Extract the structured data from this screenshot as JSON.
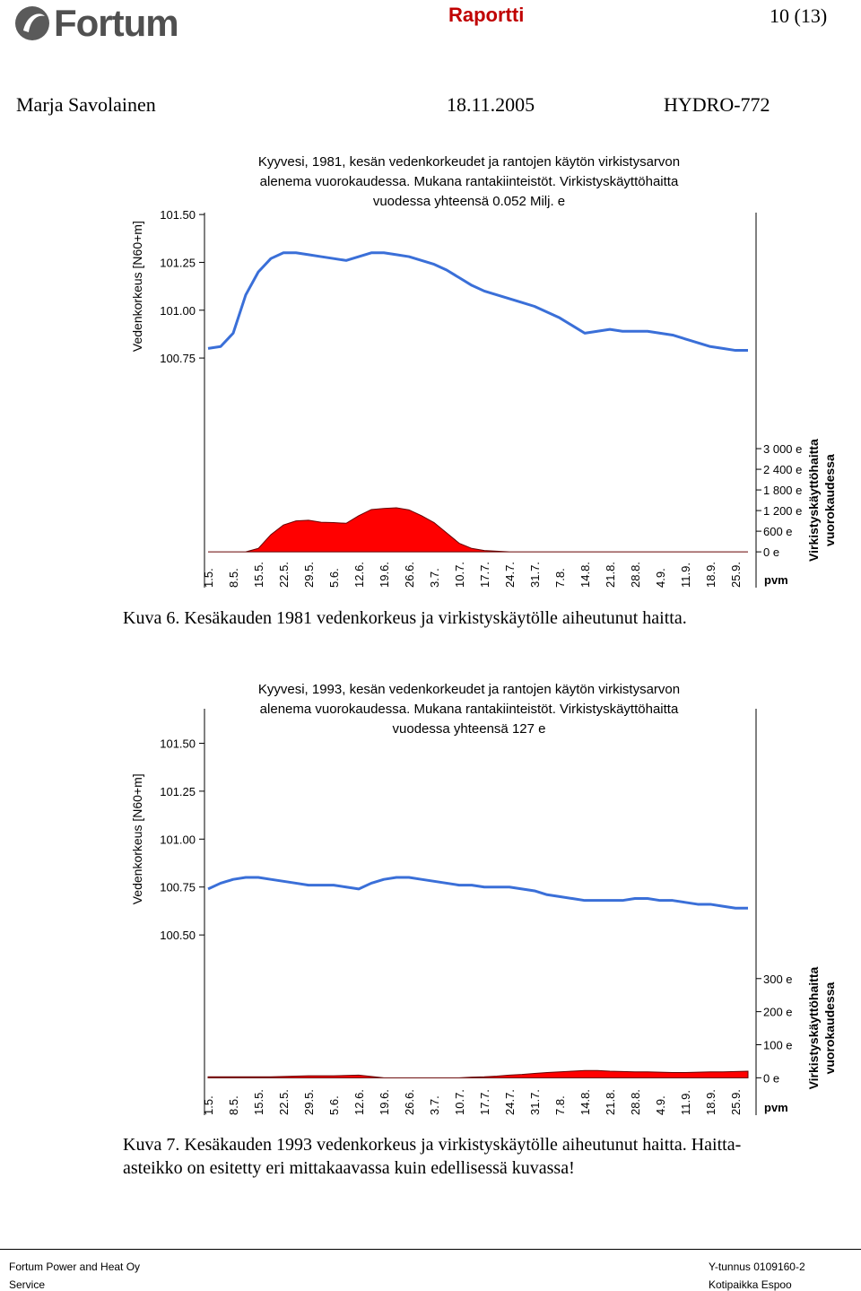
{
  "header": {
    "logo": "Fortum",
    "doc_type": "Raportti",
    "page": "10 (13)",
    "author": "Marja Savolainen",
    "date": "18.11.2005",
    "doc_id": "HYDRO-772"
  },
  "chart_data": [
    {
      "type": "line",
      "title": [
        "Kyyvesi, 1981, kesän vedenkorkeudet ja rantojen käytön virkistysarvon",
        "alenema vuorokaudessa. Mukana rantakiinteistöt. Virkistyskäyttöhaitta",
        "vuodessa yhteensä 0.052 Milj. e"
      ],
      "y_label": "Vedenkorkeus [N60+m]",
      "y2_label": [
        "Virkistyskäyttöhaitta",
        "vuorokaudessa"
      ],
      "x_label": "pvm",
      "categories": [
        "1.5.",
        null,
        "8.5.",
        null,
        "15.5.",
        null,
        "22.5.",
        null,
        "29.5.",
        null,
        "5.6.",
        null,
        "12.6.",
        null,
        "19.6.",
        null,
        "26.6.",
        null,
        "3.7.",
        null,
        "10.7.",
        null,
        "17.7.",
        null,
        "24.7.",
        null,
        "31.7.",
        null,
        "7.8.",
        null,
        "14.8.",
        null,
        "21.8.",
        null,
        "28.8.",
        null,
        "4.9.",
        null,
        "11.9.",
        null,
        "18.9.",
        null,
        "25.9.",
        null
      ],
      "ylim": [
        99.55,
        101.51
      ],
      "yticks": [
        {
          "value": 100.75,
          "label": "100.75"
        },
        {
          "value": 101.0,
          "label": "101.00"
        },
        {
          "value": 101.25,
          "label": "101.25"
        },
        {
          "value": 101.5,
          "label": "101.50"
        }
      ],
      "y2lim": [
        -1040,
        9860
      ],
      "y2ticks": [
        {
          "value": 0,
          "label": "0 e"
        },
        {
          "value": 600,
          "label": "600 e"
        },
        {
          "value": 1200,
          "label": "1 200 e"
        },
        {
          "value": 1800,
          "label": "1 800 e"
        },
        {
          "value": 2400,
          "label": "2 400 e"
        },
        {
          "value": 3000,
          "label": "3 000 e"
        }
      ],
      "series": [
        {
          "type": "line",
          "color": "#3a6fd8",
          "values": [
            100.8,
            100.81,
            100.88,
            101.08,
            101.2,
            101.27,
            101.3,
            101.3,
            101.29,
            101.28,
            101.27,
            101.26,
            101.28,
            101.3,
            101.3,
            101.29,
            101.28,
            101.26,
            101.24,
            101.21,
            101.17,
            101.13,
            101.1,
            101.08,
            101.06,
            101.04,
            101.02,
            100.99,
            100.96,
            100.92,
            100.88,
            100.89,
            100.9,
            100.89,
            100.89,
            100.89,
            100.88,
            100.87,
            100.85,
            100.83,
            100.81,
            100.8,
            100.79,
            100.79
          ]
        },
        {
          "type": "area",
          "axis": "y2",
          "color": "#ff0000",
          "values": [
            0,
            0,
            0,
            0,
            100,
            500,
            780,
            900,
            920,
            860,
            850,
            830,
            1050,
            1230,
            1260,
            1280,
            1220,
            1050,
            850,
            550,
            250,
            100,
            40,
            20,
            0,
            0,
            0,
            0,
            0,
            0,
            0,
            0,
            0,
            0,
            0,
            0,
            0,
            0,
            0,
            0,
            0,
            0,
            0,
            0
          ]
        }
      ]
    },
    {
      "type": "line",
      "title": [
        "Kyyvesi, 1993, kesän vedenkorkeudet ja rantojen käytön virkistysarvon",
        "alenema vuorokaudessa. Mukana rantakiinteistöt. Virkistyskäyttöhaitta",
        "vuodessa yhteensä 127 e"
      ],
      "y_label": "Vedenkorkeus [N60+m]",
      "y2_label": [
        "Virkistyskäyttöhaitta",
        "vuorokaudessa"
      ],
      "x_label": "pvm",
      "categories": [
        "1.5.",
        null,
        "8.5.",
        null,
        "15.5.",
        null,
        "22.5.",
        null,
        "29.5.",
        null,
        "5.6.",
        null,
        "12.6.",
        null,
        "19.6.",
        null,
        "26.6.",
        null,
        "3.7.",
        null,
        "10.7.",
        null,
        "17.7.",
        null,
        "24.7.",
        null,
        "31.7.",
        null,
        "7.8.",
        null,
        "14.8.",
        null,
        "21.8.",
        null,
        "28.8.",
        null,
        "4.9.",
        null,
        "11.9.",
        null,
        "18.9.",
        null,
        "25.9.",
        null
      ],
      "ylim": [
        99.56,
        101.68
      ],
      "yticks": [
        {
          "value": 100.5,
          "label": "100.50"
        },
        {
          "value": 100.75,
          "label": "100.75"
        },
        {
          "value": 101.0,
          "label": "101.00"
        },
        {
          "value": 101.25,
          "label": "101.25"
        },
        {
          "value": 101.5,
          "label": "101.50"
        }
      ],
      "y2lim": [
        -113,
        1116
      ],
      "y2ticks": [
        {
          "value": 0,
          "label": "0 e"
        },
        {
          "value": 100,
          "label": "100 e"
        },
        {
          "value": 200,
          "label": "200 e"
        },
        {
          "value": 300,
          "label": "300 e"
        }
      ],
      "series": [
        {
          "type": "line",
          "color": "#3a6fd8",
          "values": [
            100.74,
            100.77,
            100.79,
            100.8,
            100.8,
            100.79,
            100.78,
            100.77,
            100.76,
            100.76,
            100.76,
            100.75,
            100.74,
            100.77,
            100.79,
            100.8,
            100.8,
            100.79,
            100.78,
            100.77,
            100.76,
            100.76,
            100.75,
            100.75,
            100.75,
            100.74,
            100.73,
            100.71,
            100.7,
            100.69,
            100.68,
            100.68,
            100.68,
            100.68,
            100.69,
            100.69,
            100.68,
            100.68,
            100.67,
            100.66,
            100.66,
            100.65,
            100.64,
            100.64
          ]
        },
        {
          "type": "area",
          "axis": "y2",
          "color": "#ff0000",
          "values": [
            3,
            3,
            3,
            3,
            3,
            3,
            4,
            5,
            6,
            6,
            6,
            7,
            8,
            4,
            0,
            0,
            0,
            0,
            0,
            0,
            0,
            2,
            3,
            5,
            8,
            10,
            13,
            16,
            18,
            20,
            22,
            22,
            20,
            19,
            18,
            18,
            17,
            16,
            16,
            17,
            18,
            18,
            19,
            20
          ]
        }
      ]
    }
  ],
  "captions": [
    [
      "Kuva 6. Kesäkauden 1981 vedenkorkeus ja virkistyskäytölle aiheutunut haitta."
    ],
    [
      "Kuva 7. Kesäkauden 1993 vedenkorkeus ja virkistyskäytölle aiheutunut haitta. Haitta-",
      "asteikko on esitetty eri mittakaavassa kuin edellisessä kuvassa!"
    ]
  ],
  "footer": {
    "company": "Fortum Power and Heat Oy",
    "unit": "Service",
    "business_id": "Y-tunnus 0109160-2",
    "domicile": "Kotipaikka Espoo"
  }
}
